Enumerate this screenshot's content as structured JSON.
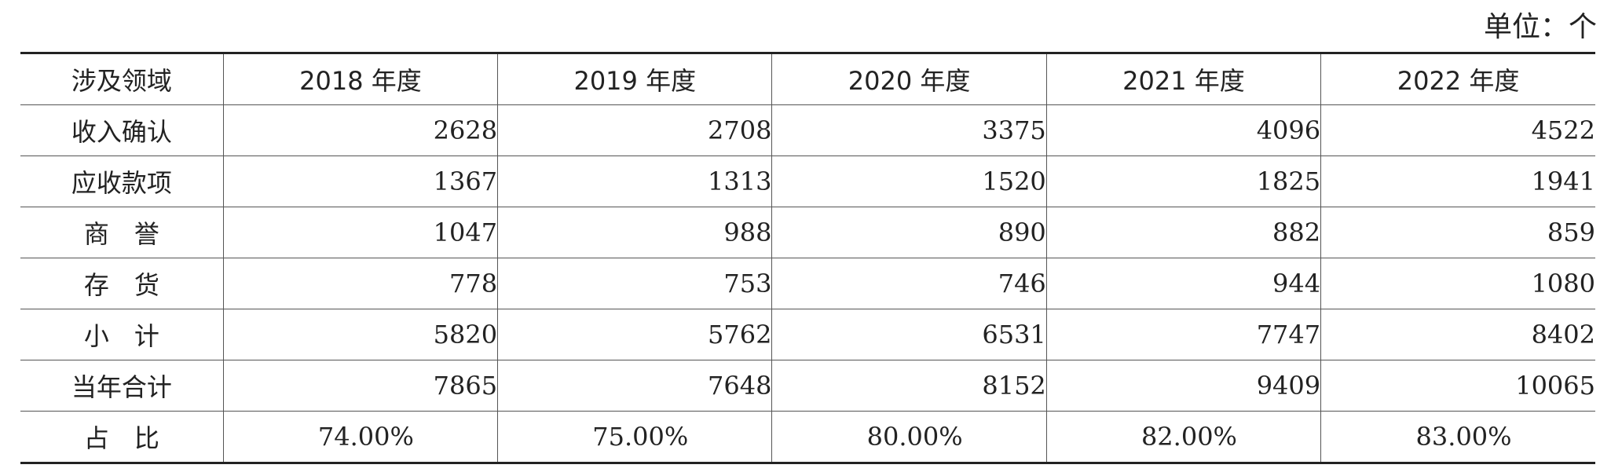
{
  "unit_label": "单位：个",
  "table": {
    "headers": [
      "涉及领域",
      "2018 年度",
      "2019 年度",
      "2020 年度",
      "2021 年度",
      "2022 年度"
    ],
    "rows": [
      {
        "label": "收入确认",
        "values": [
          "2628",
          "2708",
          "3375",
          "4096",
          "4522"
        ]
      },
      {
        "label": "应收款项",
        "values": [
          "1367",
          "1313",
          "1520",
          "1825",
          "1941"
        ]
      },
      {
        "label": "商　誉",
        "values": [
          "1047",
          "988",
          "890",
          "882",
          "859"
        ]
      },
      {
        "label": "存　货",
        "values": [
          "778",
          "753",
          "746",
          "944",
          "1080"
        ]
      },
      {
        "label": "小　计",
        "values": [
          "5820",
          "5762",
          "6531",
          "7747",
          "8402"
        ]
      },
      {
        "label": "当年合计",
        "values": [
          "7865",
          "7648",
          "8152",
          "9409",
          "10065"
        ]
      },
      {
        "label": "占　比",
        "values": [
          "74.00%",
          "75.00%",
          "80.00%",
          "82.00%",
          "83.00%"
        ]
      }
    ]
  }
}
